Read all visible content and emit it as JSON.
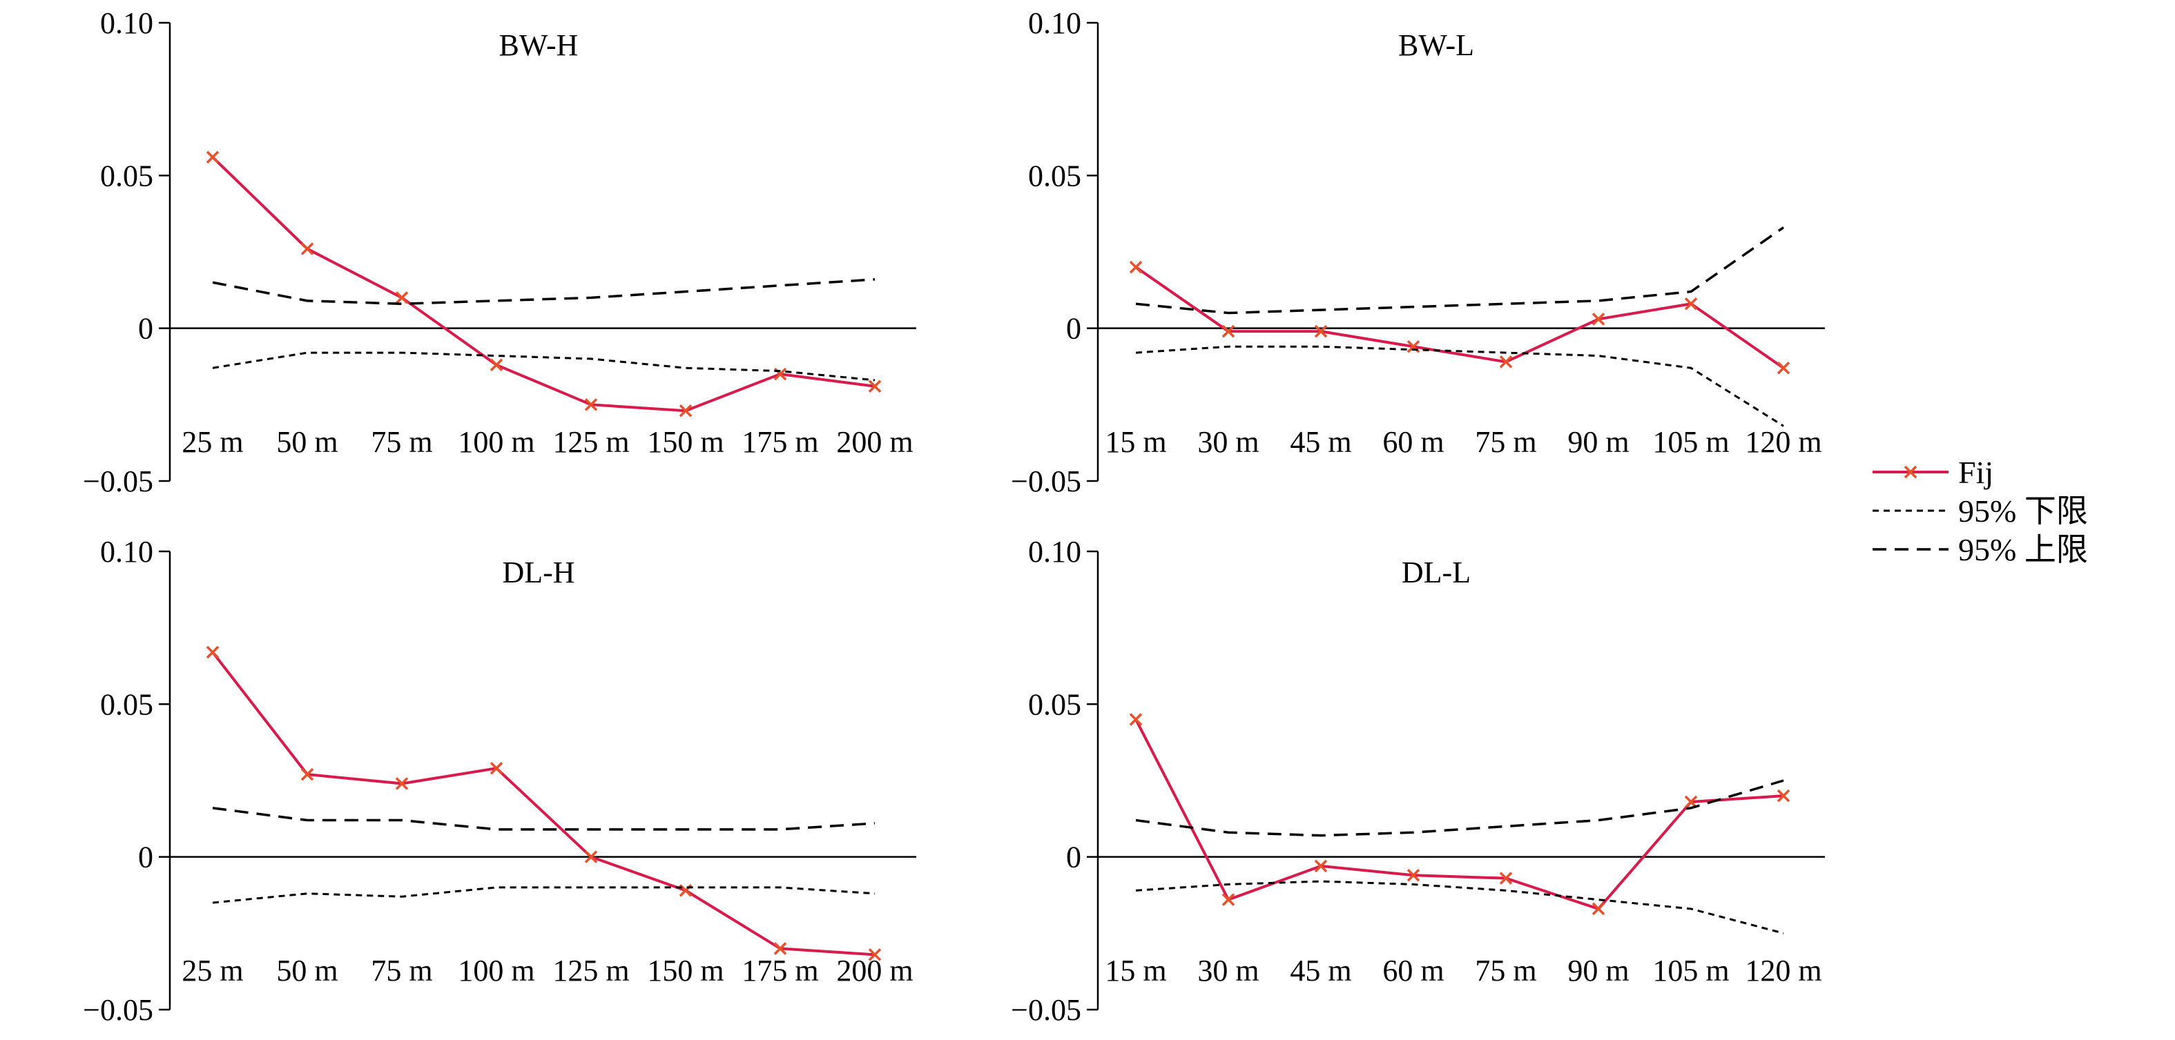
{
  "colors": {
    "fij": "#d81b4a",
    "marker": "#e8502a",
    "bounds": "#000000",
    "axis": "#000000"
  },
  "legend": {
    "placement": "right",
    "items": [
      {
        "label": "Fij",
        "style": "solid-marker-x"
      },
      {
        "label": "95% 下限",
        "style": "dash-fine"
      },
      {
        "label": "95% 上限",
        "style": "dash-coarse"
      }
    ]
  },
  "chart_data": [
    {
      "type": "line",
      "title": "BW-H",
      "categories": [
        "25 m",
        "50 m",
        "75 m",
        "100 m",
        "125 m",
        "150 m",
        "175 m",
        "200 m"
      ],
      "ylim": [
        -0.05,
        0.1
      ],
      "yticks": [
        "0.10",
        "0.05",
        "0",
        "−0.05"
      ],
      "series": [
        {
          "name": "Fij",
          "values": [
            0.056,
            0.026,
            0.01,
            -0.012,
            -0.025,
            -0.027,
            -0.015,
            -0.019
          ]
        },
        {
          "name": "95% 下限",
          "values": [
            -0.013,
            -0.008,
            -0.008,
            -0.009,
            -0.01,
            -0.013,
            -0.014,
            -0.017
          ]
        },
        {
          "name": "95% 上限",
          "values": [
            0.015,
            0.009,
            0.008,
            0.009,
            0.01,
            0.012,
            0.014,
            0.016
          ]
        }
      ]
    },
    {
      "type": "line",
      "title": "BW-L",
      "categories": [
        "15 m",
        "30 m",
        "45 m",
        "60 m",
        "75 m",
        "90 m",
        "105 m",
        "120 m"
      ],
      "ylim": [
        -0.05,
        0.1
      ],
      "yticks": [
        "0.10",
        "0.05",
        "0",
        "−0.05"
      ],
      "series": [
        {
          "name": "Fij",
          "values": [
            0.02,
            -0.001,
            -0.001,
            -0.006,
            -0.011,
            0.003,
            0.008,
            -0.013
          ]
        },
        {
          "name": "95% 下限",
          "values": [
            -0.008,
            -0.006,
            -0.006,
            -0.007,
            -0.008,
            -0.009,
            -0.013,
            -0.032
          ]
        },
        {
          "name": "95% 上限",
          "values": [
            0.008,
            0.005,
            0.006,
            0.007,
            0.008,
            0.009,
            0.012,
            0.033
          ]
        }
      ]
    },
    {
      "type": "line",
      "title": "DL-H",
      "categories": [
        "25 m",
        "50 m",
        "75 m",
        "100 m",
        "125 m",
        "150 m",
        "175 m",
        "200 m"
      ],
      "ylim": [
        -0.05,
        0.1
      ],
      "yticks": [
        "0.10",
        "0.05",
        "0",
        "−0.05"
      ],
      "series": [
        {
          "name": "Fij",
          "values": [
            0.067,
            0.027,
            0.024,
            0.029,
            0.0,
            -0.011,
            -0.03,
            -0.032
          ]
        },
        {
          "name": "95% 下限",
          "values": [
            -0.015,
            -0.012,
            -0.013,
            -0.01,
            -0.01,
            -0.01,
            -0.01,
            -0.012
          ]
        },
        {
          "name": "95% 上限",
          "values": [
            0.016,
            0.012,
            0.012,
            0.009,
            0.009,
            0.009,
            0.009,
            0.011
          ]
        }
      ]
    },
    {
      "type": "line",
      "title": "DL-L",
      "categories": [
        "15 m",
        "30 m",
        "45 m",
        "60 m",
        "75 m",
        "90 m",
        "105 m",
        "120 m"
      ],
      "ylim": [
        -0.05,
        0.1
      ],
      "yticks": [
        "0.10",
        "0.05",
        "0",
        "−0.05"
      ],
      "series": [
        {
          "name": "Fij",
          "values": [
            0.045,
            -0.014,
            -0.003,
            -0.006,
            -0.007,
            -0.017,
            0.018,
            0.02
          ]
        },
        {
          "name": "95% 下限",
          "values": [
            -0.011,
            -0.009,
            -0.008,
            -0.009,
            -0.011,
            -0.014,
            -0.017,
            -0.025
          ]
        },
        {
          "name": "95% 上限",
          "values": [
            0.012,
            0.008,
            0.007,
            0.008,
            0.01,
            0.012,
            0.016,
            0.025
          ]
        }
      ]
    }
  ]
}
